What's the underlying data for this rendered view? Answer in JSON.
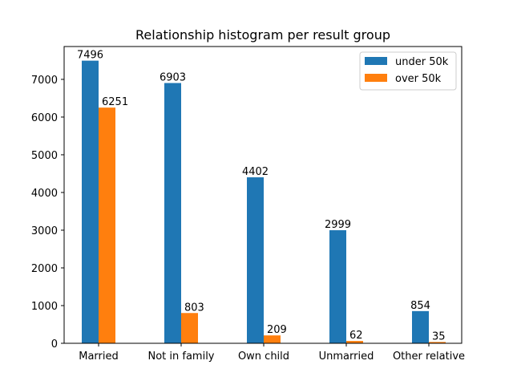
{
  "chart_data": {
    "type": "bar",
    "title": "Relationship histogram per result group",
    "xlabel": "",
    "ylabel": "",
    "categories": [
      "Married",
      "Not in family",
      "Own child",
      "Unmarried",
      "Other relative"
    ],
    "series": [
      {
        "name": "under 50k",
        "values": [
          7496,
          6903,
          4402,
          2999,
          854
        ],
        "color": "#1f77b4"
      },
      {
        "name": "over 50k",
        "values": [
          6251,
          803,
          209,
          62,
          35
        ],
        "color": "#ff7f0e"
      }
    ],
    "ylim": [
      0,
      7871
    ],
    "yticks": [
      0,
      1000,
      2000,
      3000,
      4000,
      5000,
      6000,
      7000
    ],
    "grid": false,
    "legend_position": "top-right"
  }
}
